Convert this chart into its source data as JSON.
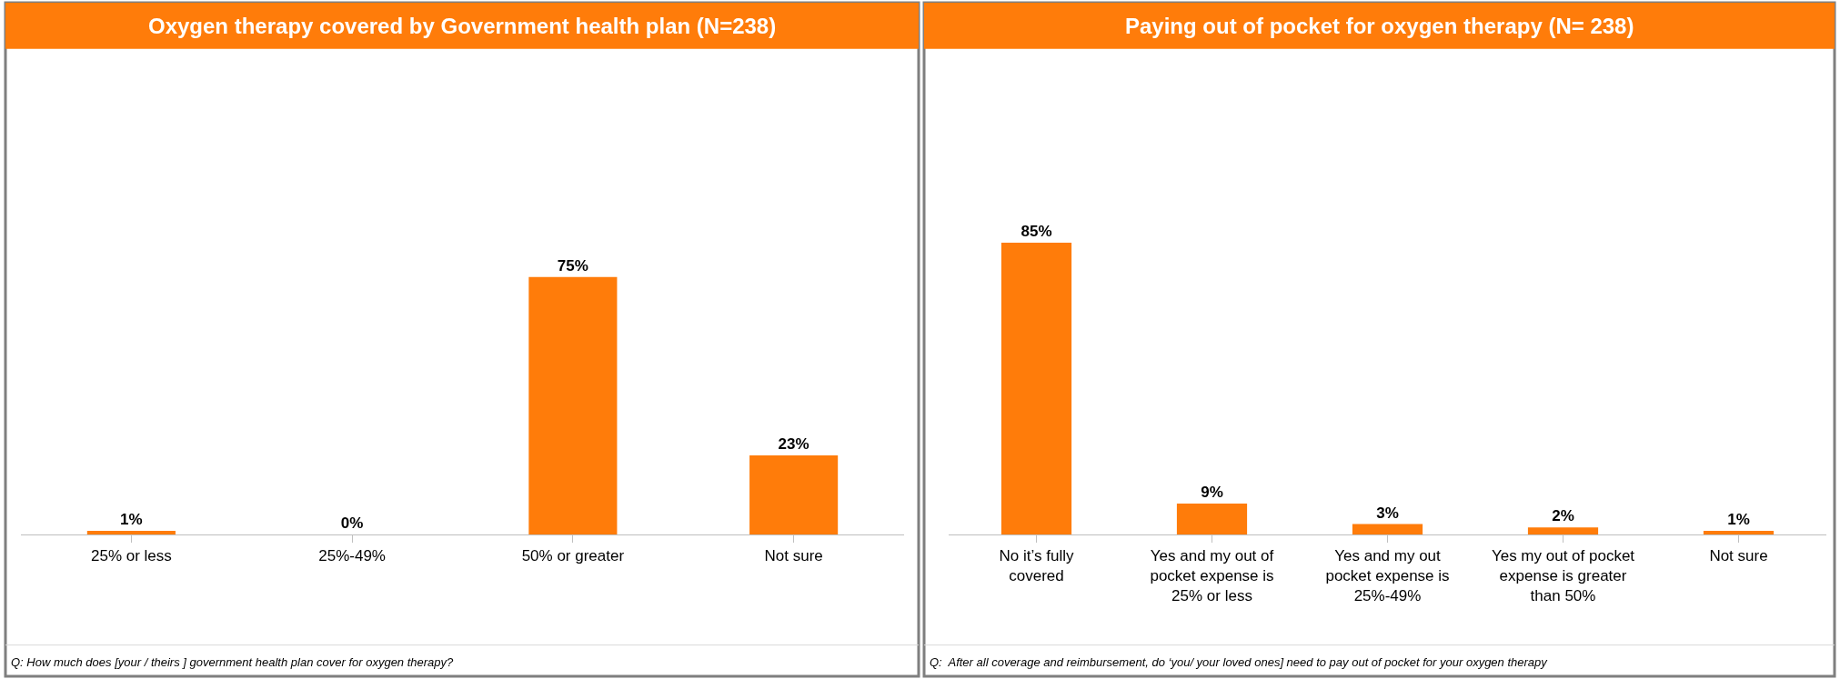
{
  "chart_data": [
    {
      "type": "bar",
      "title": "Oxygen therapy covered by Government health plan (N=238)",
      "categories": [
        "25% or less",
        "25%-49%",
        "50% or greater",
        "Not sure"
      ],
      "values": [
        1,
        0,
        75,
        23
      ],
      "value_labels": [
        "1%",
        "0%",
        "75%",
        "23%"
      ],
      "color": "#ff7c0a",
      "annotations": [
        "Q: How much does [your / theirs ] government health plan cover for oxygen therapy?"
      ]
    },
    {
      "type": "bar",
      "title": "Paying out of pocket for oxygen therapy (N= 238)",
      "categories": [
        "No it’s fully covered",
        "Yes and my out of pocket expense is 25% or less",
        "Yes and my out pocket expense is 25%-49%",
        "Yes my out of pocket expense is greater than 50%",
        "Not sure"
      ],
      "values": [
        85,
        9,
        3,
        2,
        1
      ],
      "value_labels": [
        "85%",
        "9%",
        "3%",
        "2%",
        "1%"
      ],
      "color": "#ff7c0a",
      "annotations": [
        "Q:  After all coverage and reimbursement, do ‘you/ your loved ones] need to pay out of pocket for your oxygen therapy"
      ]
    }
  ]
}
